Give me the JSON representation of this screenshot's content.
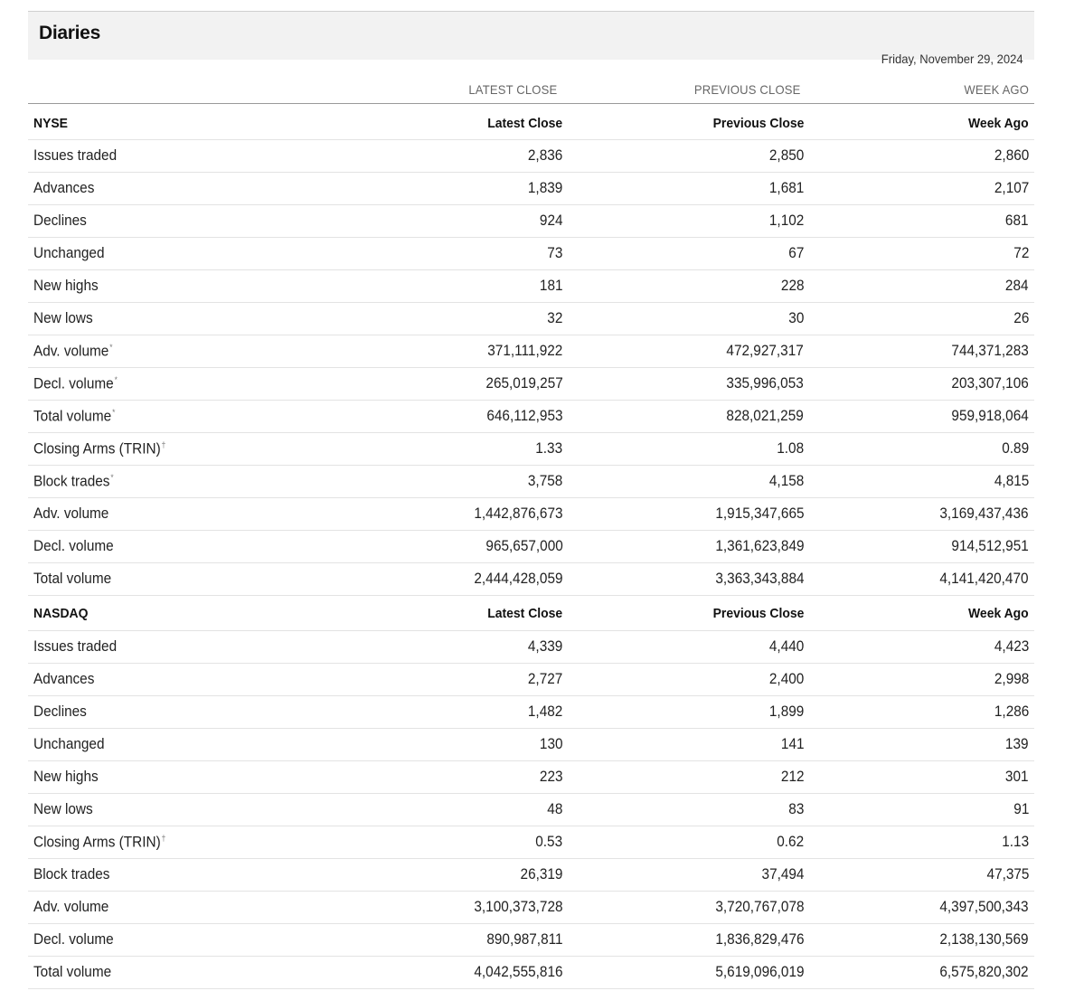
{
  "page": {
    "title": "Diaries",
    "date": "Friday, November 29, 2024"
  },
  "column_headers": [
    "LATEST CLOSE",
    "PREVIOUS CLOSE",
    "WEEK AGO"
  ],
  "sections": [
    {
      "name": "NYSE",
      "headers": [
        "Latest Close",
        "Previous Close",
        "Week Ago"
      ],
      "rows": [
        {
          "label": "Issues traded",
          "mark": "",
          "values": [
            "2,836",
            "2,850",
            "2,860"
          ]
        },
        {
          "label": "Advances",
          "mark": "",
          "values": [
            "1,839",
            "1,681",
            "2,107"
          ]
        },
        {
          "label": "Declines",
          "mark": "",
          "values": [
            "924",
            "1,102",
            "681"
          ]
        },
        {
          "label": "Unchanged",
          "mark": "",
          "values": [
            "73",
            "67",
            "72"
          ]
        },
        {
          "label": "New highs",
          "mark": "",
          "values": [
            "181",
            "228",
            "284"
          ]
        },
        {
          "label": "New lows",
          "mark": "",
          "values": [
            "32",
            "30",
            "26"
          ]
        },
        {
          "label": "Adv. volume",
          "mark": "*",
          "values": [
            "371,111,922",
            "472,927,317",
            "744,371,283"
          ]
        },
        {
          "label": "Decl. volume",
          "mark": "*",
          "values": [
            "265,019,257",
            "335,996,053",
            "203,307,106"
          ]
        },
        {
          "label": "Total volume",
          "mark": "*",
          "values": [
            "646,112,953",
            "828,021,259",
            "959,918,064"
          ]
        },
        {
          "label": "Closing Arms (TRIN)",
          "mark": "†",
          "values": [
            "1.33",
            "1.08",
            "0.89"
          ]
        },
        {
          "label": "Block trades",
          "mark": "*",
          "values": [
            "3,758",
            "4,158",
            "4,815"
          ]
        },
        {
          "label": "Adv. volume",
          "mark": "",
          "values": [
            "1,442,876,673",
            "1,915,347,665",
            "3,169,437,436"
          ]
        },
        {
          "label": "Decl. volume",
          "mark": "",
          "values": [
            "965,657,000",
            "1,361,623,849",
            "914,512,951"
          ]
        },
        {
          "label": "Total volume",
          "mark": "",
          "values": [
            "2,444,428,059",
            "3,363,343,884",
            "4,141,420,470"
          ]
        }
      ]
    },
    {
      "name": "NASDAQ",
      "headers": [
        "Latest Close",
        "Previous Close",
        "Week Ago"
      ],
      "rows": [
        {
          "label": "Issues traded",
          "mark": "",
          "values": [
            "4,339",
            "4,440",
            "4,423"
          ]
        },
        {
          "label": "Advances",
          "mark": "",
          "values": [
            "2,727",
            "2,400",
            "2,998"
          ]
        },
        {
          "label": "Declines",
          "mark": "",
          "values": [
            "1,482",
            "1,899",
            "1,286"
          ]
        },
        {
          "label": "Unchanged",
          "mark": "",
          "values": [
            "130",
            "141",
            "139"
          ]
        },
        {
          "label": "New highs",
          "mark": "",
          "values": [
            "223",
            "212",
            "301"
          ]
        },
        {
          "label": "New lows",
          "mark": "",
          "values": [
            "48",
            "83",
            "91"
          ]
        },
        {
          "label": "Closing Arms (TRIN)",
          "mark": "†",
          "values": [
            "0.53",
            "0.62",
            "1.13"
          ]
        },
        {
          "label": "Block trades",
          "mark": "",
          "values": [
            "26,319",
            "37,494",
            "47,375"
          ]
        },
        {
          "label": "Adv. volume",
          "mark": "",
          "values": [
            "3,100,373,728",
            "3,720,767,078",
            "4,397,500,343"
          ]
        },
        {
          "label": "Decl. volume",
          "mark": "",
          "values": [
            "890,987,811",
            "1,836,829,476",
            "2,138,130,569"
          ]
        },
        {
          "label": "Total volume",
          "mark": "",
          "values": [
            "4,042,555,816",
            "5,619,096,019",
            "6,575,820,302"
          ]
        }
      ]
    }
  ]
}
